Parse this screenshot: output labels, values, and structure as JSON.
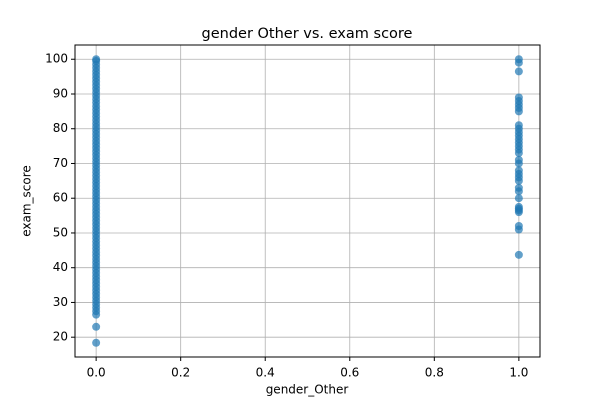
{
  "chart_data": {
    "type": "scatter",
    "title": "gender Other vs. exam score",
    "x_label": "gender_Other",
    "y_label": "exam_score",
    "x": [
      0,
      0,
      0,
      0,
      0,
      0,
      0,
      0,
      0,
      0,
      0,
      0,
      0,
      0,
      0,
      0,
      0,
      0,
      0,
      0,
      0,
      0,
      0,
      0,
      0,
      0,
      0,
      0,
      0,
      0,
      0,
      0,
      0,
      0,
      0,
      0,
      0,
      0,
      0,
      0,
      0,
      0,
      0,
      0,
      0,
      0,
      0,
      0,
      0,
      0,
      0,
      0,
      0,
      0,
      0,
      0,
      0,
      0,
      0,
      0,
      0,
      0,
      0,
      0,
      0,
      0,
      0,
      0,
      0,
      0,
      0,
      0,
      0,
      0,
      0,
      0,
      0,
      1,
      1,
      1,
      1,
      1,
      1,
      1,
      1,
      1,
      1,
      1,
      1,
      1,
      1,
      1,
      1,
      1,
      1,
      1,
      1,
      1,
      1,
      1,
      1,
      1,
      1,
      1,
      1,
      1,
      1,
      1,
      1,
      1
    ],
    "y": [
      18.4,
      23,
      26.5,
      27.5,
      28.5,
      29.5,
      30.5,
      31.5,
      32.5,
      33.5,
      34.5,
      35.5,
      36.5,
      37.5,
      38.5,
      39.5,
      40.5,
      41.5,
      42.5,
      43.5,
      44.5,
      45.5,
      46.5,
      47.5,
      48.5,
      49.5,
      50.5,
      51.5,
      52.5,
      53.5,
      54.5,
      55.5,
      56.5,
      57.5,
      58.5,
      59.5,
      60.5,
      61.5,
      62.5,
      63.5,
      64.5,
      65.5,
      66.5,
      67.5,
      68.5,
      69.5,
      70.5,
      71.5,
      72.5,
      73.5,
      74.5,
      75.5,
      76.5,
      77.5,
      78.5,
      79.5,
      80.5,
      81.5,
      82.5,
      83.5,
      84.5,
      85.5,
      86.5,
      87.5,
      88.5,
      89.5,
      90.5,
      91.5,
      92.5,
      93.5,
      94.5,
      95.5,
      96.5,
      97.5,
      98.5,
      99.5,
      100,
      43.7,
      51,
      52,
      56,
      56.5,
      57,
      57.5,
      60,
      62,
      63,
      65,
      66,
      67,
      68,
      70,
      71,
      73,
      74,
      75,
      76,
      77,
      78,
      79,
      80,
      81,
      85,
      86,
      87,
      88,
      89,
      96.5,
      99,
      100
    ],
    "color": "#1f77b4",
    "xlim": [
      -0.05,
      1.05
    ],
    "ylim": [
      14.3,
      104.1
    ],
    "xticks": [
      {
        "value": 0,
        "label": "0.0"
      },
      {
        "value": 0.2,
        "label": "0.2"
      },
      {
        "value": 0.4,
        "label": "0.4"
      },
      {
        "value": 0.6,
        "label": "0.6"
      },
      {
        "value": 0.8,
        "label": "0.8"
      },
      {
        "value": 1,
        "label": "1.0"
      }
    ],
    "yticks": [
      20,
      30,
      40,
      50,
      60,
      70,
      80,
      90,
      100
    ],
    "grid": true
  }
}
